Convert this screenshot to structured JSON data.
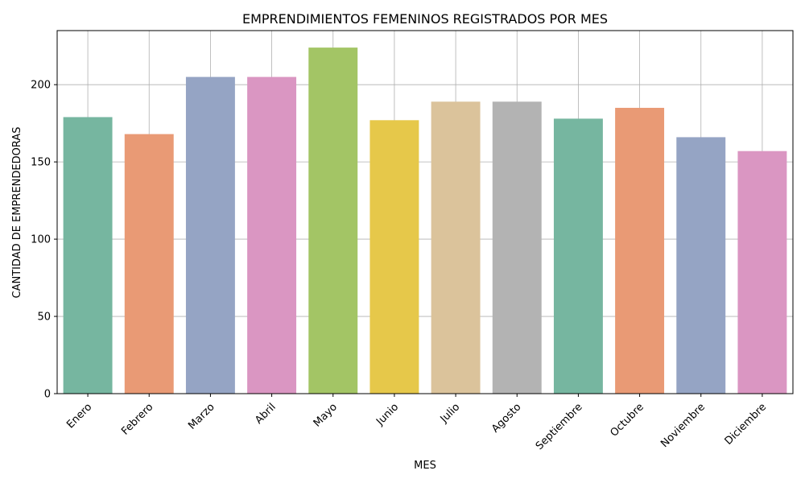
{
  "chart_data": {
    "type": "bar",
    "title": "EMPRENDIMIENTOS FEMENINOS REGISTRADOS POR MES",
    "xlabel": "MES",
    "ylabel": "CANTIDAD DE EMPRENDEDORAS",
    "categories": [
      "Enero",
      "Febrero",
      "Marzo",
      "Abril",
      "Mayo",
      "Junio",
      "Julio",
      "Agosto",
      "Septiembre",
      "Octubre",
      "Noviembre",
      "Diciembre"
    ],
    "values": [
      179,
      168,
      205,
      205,
      224,
      177,
      189,
      189,
      178,
      185,
      166,
      157
    ],
    "colors": [
      "#76b6a0",
      "#e99a75",
      "#95a4c4",
      "#da96c2",
      "#a3c565",
      "#e6c84a",
      "#dbc39b",
      "#b3b3b3",
      "#76b6a0",
      "#e99a75",
      "#95a4c4",
      "#da96c2"
    ],
    "yticks": [
      0,
      50,
      100,
      150,
      200
    ],
    "ylim": [
      0,
      235
    ],
    "grid": true,
    "legend": "none"
  }
}
